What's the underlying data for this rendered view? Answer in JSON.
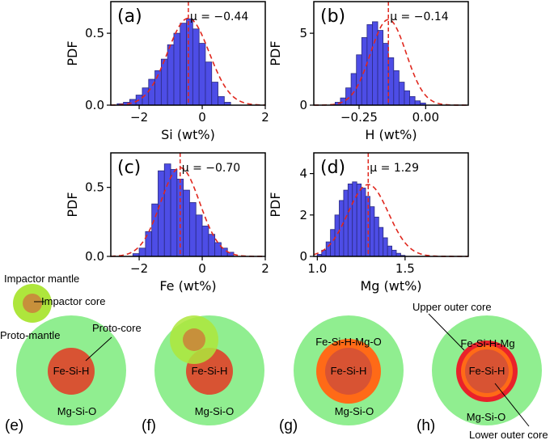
{
  "colors": {
    "bar": "#4d4de6",
    "bar_edge": "#2a2a80",
    "fit": "#e0281e",
    "mantle": "#90ee90",
    "core": "#d85333",
    "impactor_mantle": "#aee63c",
    "impactor_core": "#c7903b",
    "outer_core_orange": "#ff6a17",
    "outer_core_red": "#e9222a"
  },
  "chart_data": [
    {
      "id": "a",
      "type": "bar",
      "panel_tag": "(a)",
      "xlabel": "Si (wt%)",
      "ylabel": "PDF",
      "mu_label": "μ = −0.44",
      "mu": -0.44,
      "sigma": 0.66,
      "xlim": [
        -2.9,
        2.0
      ],
      "ylim": [
        0,
        0.72
      ],
      "xticks": [
        -2,
        0,
        2
      ],
      "xtick_labels": [
        "−2",
        "0",
        "2"
      ],
      "yticks": [
        0.0,
        0.5
      ],
      "ytick_labels": [
        "0.0",
        "0.5"
      ],
      "bin_start": -2.7,
      "bin_width": 0.2,
      "values": [
        0.01,
        0.02,
        0.04,
        0.07,
        0.12,
        0.18,
        0.24,
        0.32,
        0.42,
        0.5,
        0.57,
        0.6,
        0.53,
        0.43,
        0.3,
        0.16,
        0.06,
        0.02
      ]
    },
    {
      "id": "b",
      "type": "bar",
      "panel_tag": "(b)",
      "xlabel": "H (wt%)",
      "ylabel": "PDF",
      "mu_label": "μ = −0.14",
      "mu": -0.14,
      "sigma": 0.067,
      "xlim": [
        -0.42,
        0.16
      ],
      "ylim": [
        0,
        7.2
      ],
      "xticks": [
        -0.25,
        0.0
      ],
      "xtick_labels": [
        "−0.25",
        "0.00"
      ],
      "yticks": [
        0,
        5
      ],
      "ytick_labels": [
        "0",
        "5"
      ],
      "bin_start": -0.34,
      "bin_width": 0.02,
      "values": [
        0.2,
        0.5,
        1.2,
        2.2,
        3.5,
        4.7,
        5.6,
        5.8,
        5.2,
        4.3,
        3.3,
        2.4,
        1.6,
        1.0,
        0.6,
        0.3,
        0.15
      ]
    },
    {
      "id": "c",
      "type": "bar",
      "panel_tag": "(c)",
      "xlabel": "Fe (wt%)",
      "ylabel": "PDF",
      "mu_label": "μ = −0.70",
      "mu": -0.7,
      "sigma": 0.62,
      "xlim": [
        -2.9,
        2.0
      ],
      "ylim": [
        0,
        0.75
      ],
      "xticks": [
        -2,
        0,
        2
      ],
      "xtick_labels": [
        "−2",
        "0",
        "2"
      ],
      "yticks": [
        0.0,
        0.5
      ],
      "ytick_labels": [
        "0.0",
        "0.5"
      ],
      "bin_start": -2.2,
      "bin_width": 0.2,
      "values": [
        0.02,
        0.06,
        0.18,
        0.38,
        0.62,
        0.67,
        0.63,
        0.56,
        0.48,
        0.39,
        0.3,
        0.22,
        0.16,
        0.1,
        0.06,
        0.03
      ]
    },
    {
      "id": "d",
      "type": "bar",
      "panel_tag": "(d)",
      "xlabel": "Mg (wt%)",
      "ylabel": "PDF",
      "mu_label": "μ = 1.29",
      "mu": 1.29,
      "sigma": 0.115,
      "xlim": [
        0.98,
        1.86
      ],
      "ylim": [
        0,
        5.0
      ],
      "xticks": [
        1.0,
        1.5
      ],
      "xtick_labels": [
        "1.0",
        "1.5"
      ],
      "yticks": [
        0,
        2,
        4
      ],
      "ytick_labels": [
        "0",
        "2",
        "4"
      ],
      "bin_start": 1.0,
      "bin_width": 0.025,
      "values": [
        0.1,
        0.3,
        0.7,
        1.3,
        2.0,
        2.7,
        3.2,
        3.5,
        3.6,
        3.5,
        3.3,
        2.9,
        2.4,
        1.9,
        1.4,
        0.9,
        0.5,
        0.3,
        0.15,
        0.05
      ]
    }
  ],
  "diagrams": {
    "e": {
      "tag": "(e)",
      "impactor_mantle_label": "Impactor mantle",
      "impactor_core_label": "Impactor core",
      "proto_mantle_label": "Proto-mantle",
      "proto_core_label": "Proto-core",
      "core_label": "Fe-Si-H",
      "mantle_label": "Mg-Si-O"
    },
    "f": {
      "tag": "(f)",
      "core_label": "Fe-Si-H",
      "mantle_label": "Mg-Si-O"
    },
    "g": {
      "tag": "(g)",
      "outer_label": "Fe-Si-H-Mg-O",
      "core_label": "Fe-Si-H",
      "mantle_label": "Mg-Si-O"
    },
    "h": {
      "tag": "(h)",
      "upper_label": "Upper outer core",
      "outer_label": "Fe-Si-H-Mg",
      "core_label": "Fe-Si-H",
      "mantle_label": "Mg-Si-O",
      "lower_label": "Lower outer core"
    }
  }
}
